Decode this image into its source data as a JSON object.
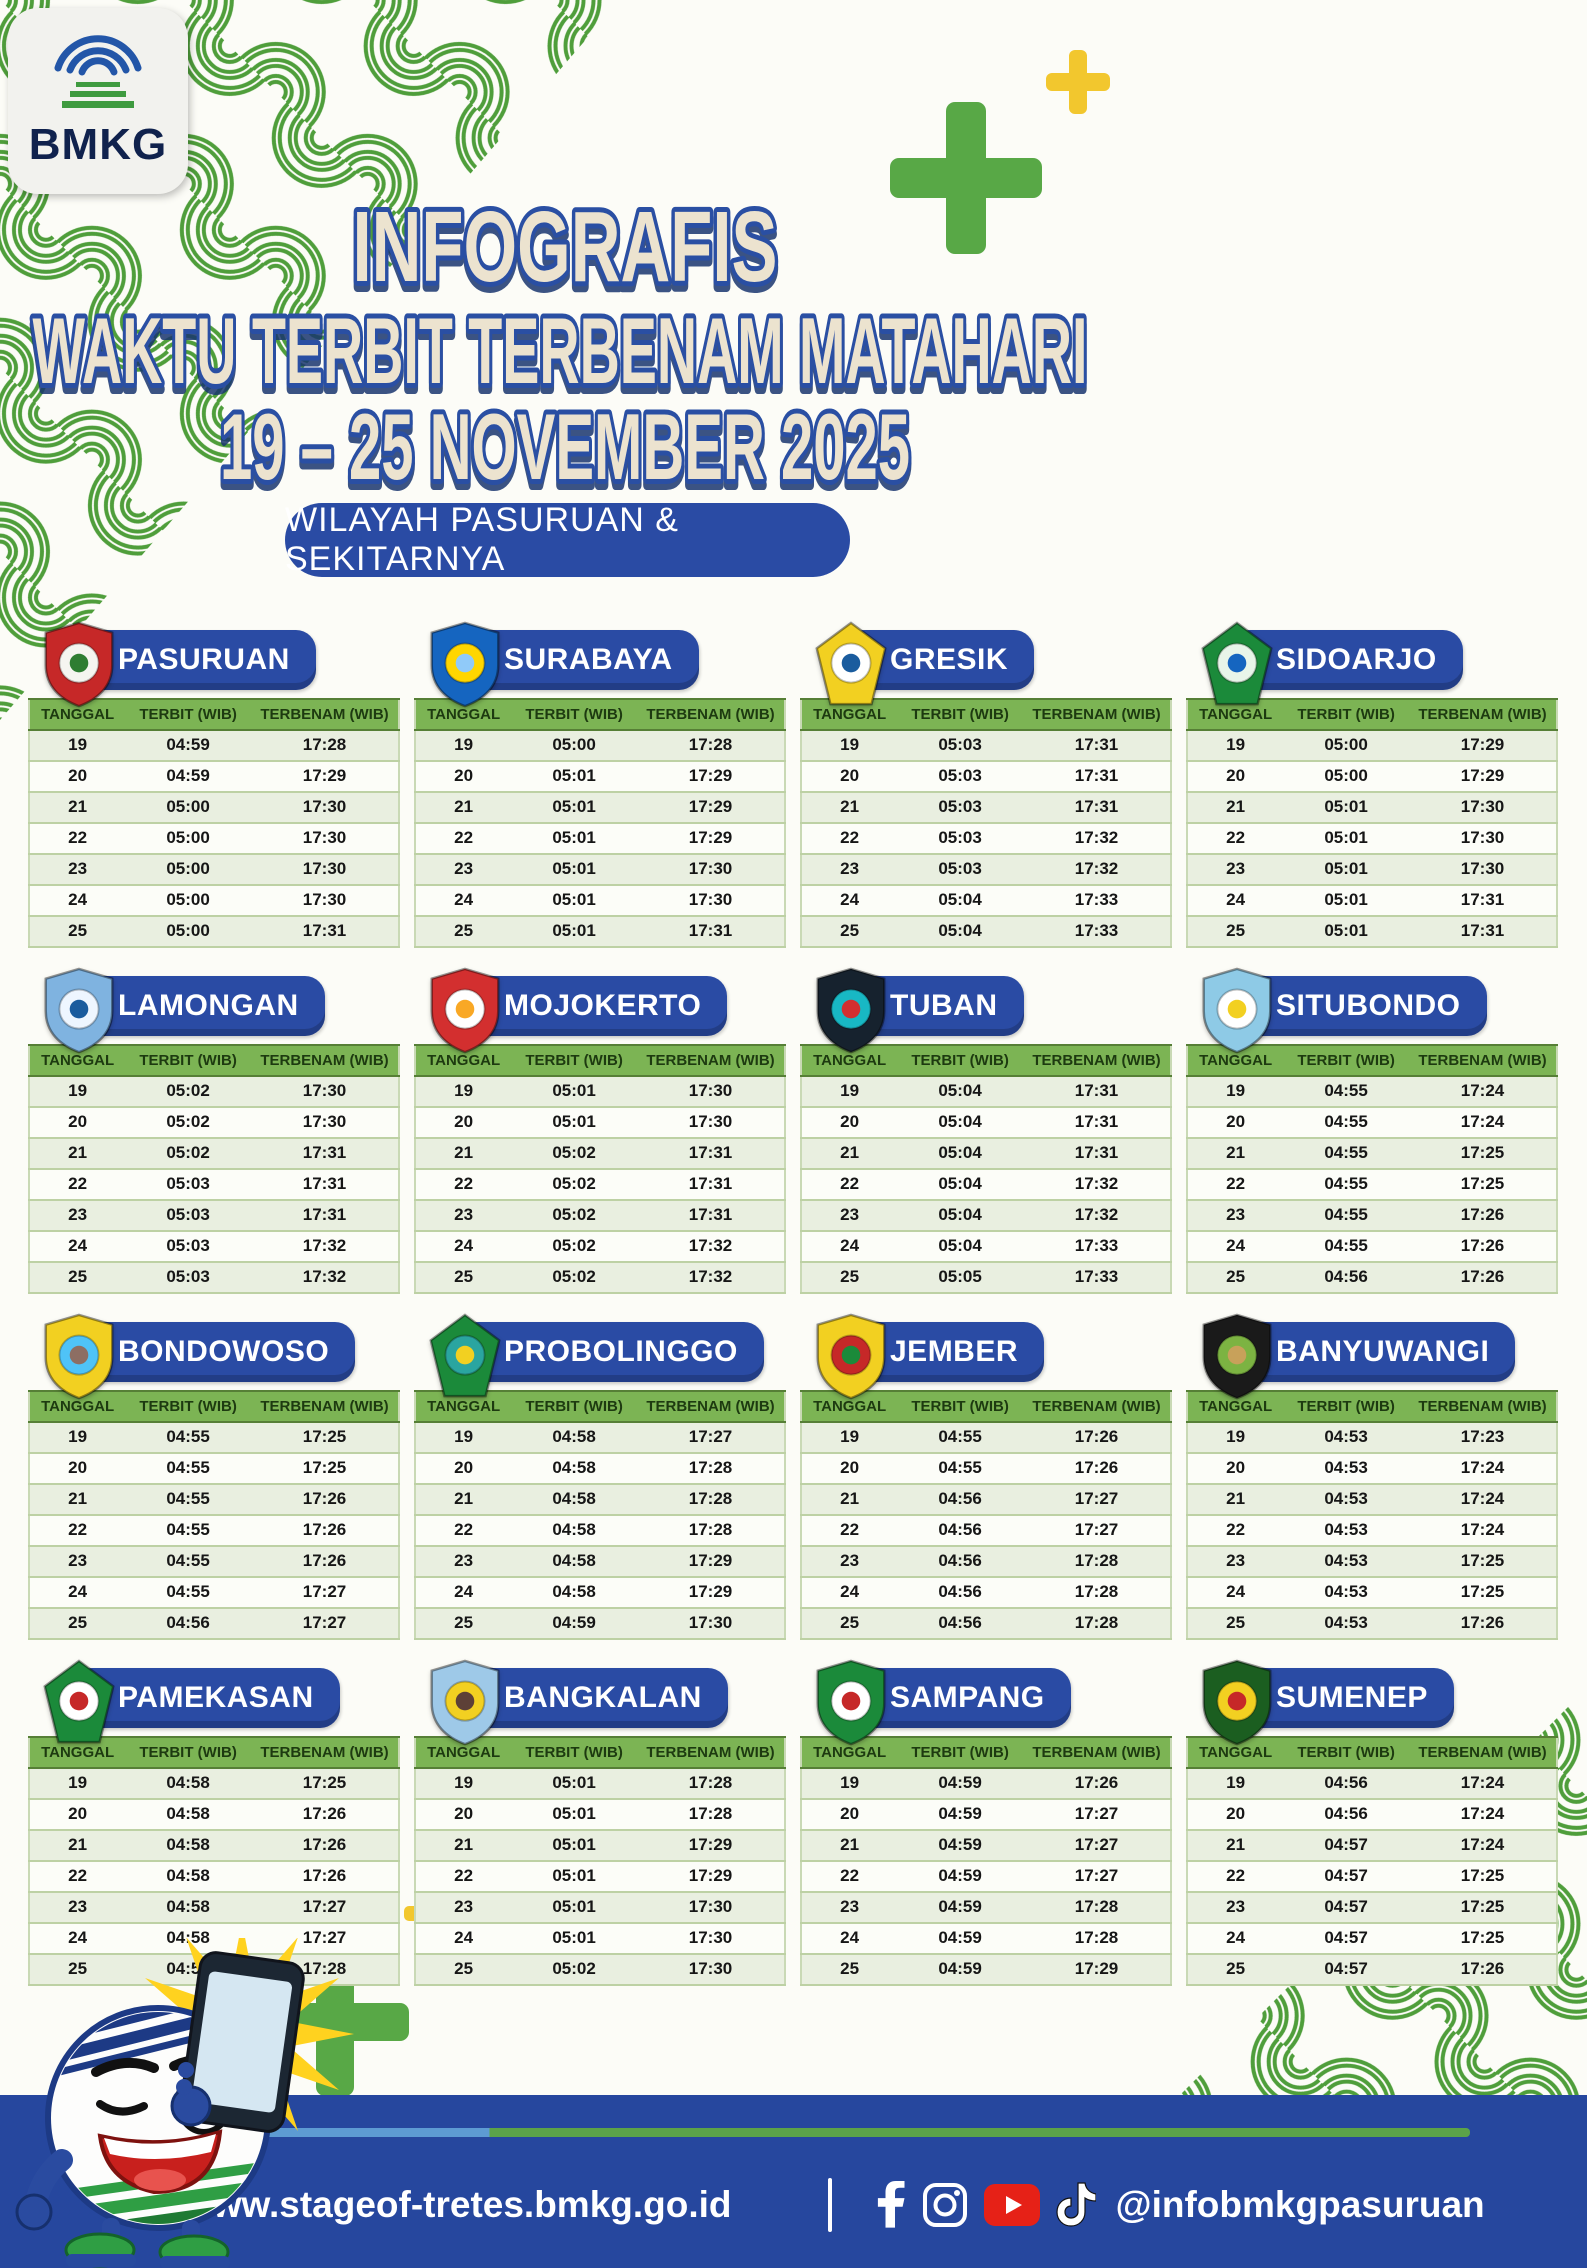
{
  "palette": {
    "accent_blue": "#2a4ba4",
    "footer_blue": "#26479e",
    "table_header_green": "#7cb454",
    "pattern_green": "#4f9e3b",
    "plus_green": "#58a846",
    "plus_yellow": "#f2c72e",
    "title_cream": "#ece3cf",
    "youtube_red": "#e62117"
  },
  "logo": {
    "text": "BMKG"
  },
  "header": {
    "title1": "INFOGRAFIS",
    "title2": "WAKTU TERBIT TERBENAM MATAHARI",
    "title3": "19 – 25 NOVEMBER 2025",
    "region": "WILAYAH PASURUAN & SEKITARNYA"
  },
  "table": {
    "headers": [
      "TANGGAL",
      "TERBIT (WIB)",
      "TERBENAM (WIB)"
    ]
  },
  "cities": [
    {
      "name": "PASURUAN",
      "emblem": {
        "shape": "shield",
        "colors": [
          "#c62828",
          "#f5f5f0",
          "#2e7d32"
        ]
      },
      "rows": [
        [
          "19",
          "04:59",
          "17:28"
        ],
        [
          "20",
          "04:59",
          "17:29"
        ],
        [
          "21",
          "05:00",
          "17:30"
        ],
        [
          "22",
          "05:00",
          "17:30"
        ],
        [
          "23",
          "05:00",
          "17:30"
        ],
        [
          "24",
          "05:00",
          "17:30"
        ],
        [
          "25",
          "05:00",
          "17:31"
        ]
      ]
    },
    {
      "name": "SURABAYA",
      "emblem": {
        "shape": "shield",
        "colors": [
          "#1565c0",
          "#ffd600",
          "#90caf9"
        ]
      },
      "rows": [
        [
          "19",
          "05:00",
          "17:28"
        ],
        [
          "20",
          "05:01",
          "17:29"
        ],
        [
          "21",
          "05:01",
          "17:29"
        ],
        [
          "22",
          "05:01",
          "17:29"
        ],
        [
          "23",
          "05:01",
          "17:30"
        ],
        [
          "24",
          "05:01",
          "17:30"
        ],
        [
          "25",
          "05:01",
          "17:31"
        ]
      ]
    },
    {
      "name": "GRESIK",
      "emblem": {
        "shape": "pentagon",
        "colors": [
          "#f2d021",
          "#ffffff",
          "#1a5c9e"
        ]
      },
      "rows": [
        [
          "19",
          "05:03",
          "17:31"
        ],
        [
          "20",
          "05:03",
          "17:31"
        ],
        [
          "21",
          "05:03",
          "17:31"
        ],
        [
          "22",
          "05:03",
          "17:32"
        ],
        [
          "23",
          "05:03",
          "17:32"
        ],
        [
          "24",
          "05:04",
          "17:33"
        ],
        [
          "25",
          "05:04",
          "17:33"
        ]
      ]
    },
    {
      "name": "SIDOARJO",
      "emblem": {
        "shape": "pentagon",
        "colors": [
          "#1b8a3a",
          "#e8f5e9",
          "#1565c0"
        ]
      },
      "rows": [
        [
          "19",
          "05:00",
          "17:29"
        ],
        [
          "20",
          "05:00",
          "17:29"
        ],
        [
          "21",
          "05:01",
          "17:30"
        ],
        [
          "22",
          "05:01",
          "17:30"
        ],
        [
          "23",
          "05:01",
          "17:30"
        ],
        [
          "24",
          "05:01",
          "17:31"
        ],
        [
          "25",
          "05:01",
          "17:31"
        ]
      ]
    },
    {
      "name": "LAMONGAN",
      "emblem": {
        "shape": "shield",
        "colors": [
          "#7fb3e0",
          "#eef6ff",
          "#1a5c9e"
        ]
      },
      "rows": [
        [
          "19",
          "05:02",
          "17:30"
        ],
        [
          "20",
          "05:02",
          "17:30"
        ],
        [
          "21",
          "05:02",
          "17:31"
        ],
        [
          "22",
          "05:03",
          "17:31"
        ],
        [
          "23",
          "05:03",
          "17:31"
        ],
        [
          "24",
          "05:03",
          "17:32"
        ],
        [
          "25",
          "05:03",
          "17:32"
        ]
      ]
    },
    {
      "name": "MOJOKERTO",
      "emblem": {
        "shape": "shield",
        "colors": [
          "#d32f2f",
          "#ffffff",
          "#f9a825"
        ]
      },
      "rows": [
        [
          "19",
          "05:01",
          "17:30"
        ],
        [
          "20",
          "05:01",
          "17:30"
        ],
        [
          "21",
          "05:02",
          "17:31"
        ],
        [
          "22",
          "05:02",
          "17:31"
        ],
        [
          "23",
          "05:02",
          "17:31"
        ],
        [
          "24",
          "05:02",
          "17:32"
        ],
        [
          "25",
          "05:02",
          "17:32"
        ]
      ]
    },
    {
      "name": "TUBAN",
      "emblem": {
        "shape": "shield",
        "colors": [
          "#16222e",
          "#18b8c4",
          "#d32f2f"
        ]
      },
      "rows": [
        [
          "19",
          "05:04",
          "17:31"
        ],
        [
          "20",
          "05:04",
          "17:31"
        ],
        [
          "21",
          "05:04",
          "17:31"
        ],
        [
          "22",
          "05:04",
          "17:32"
        ],
        [
          "23",
          "05:04",
          "17:32"
        ],
        [
          "24",
          "05:04",
          "17:33"
        ],
        [
          "25",
          "05:05",
          "17:33"
        ]
      ]
    },
    {
      "name": "SITUBONDO",
      "emblem": {
        "shape": "shield",
        "colors": [
          "#8ecae6",
          "#ffffff",
          "#f2d021"
        ]
      },
      "rows": [
        [
          "19",
          "04:55",
          "17:24"
        ],
        [
          "20",
          "04:55",
          "17:24"
        ],
        [
          "21",
          "04:55",
          "17:25"
        ],
        [
          "22",
          "04:55",
          "17:25"
        ],
        [
          "23",
          "04:55",
          "17:26"
        ],
        [
          "24",
          "04:55",
          "17:26"
        ],
        [
          "25",
          "04:56",
          "17:26"
        ]
      ]
    },
    {
      "name": "BONDOWOSO",
      "emblem": {
        "shape": "shield",
        "colors": [
          "#f2d021",
          "#4fc3f7",
          "#8d6e63"
        ]
      },
      "rows": [
        [
          "19",
          "04:55",
          "17:25"
        ],
        [
          "20",
          "04:55",
          "17:25"
        ],
        [
          "21",
          "04:55",
          "17:26"
        ],
        [
          "22",
          "04:55",
          "17:26"
        ],
        [
          "23",
          "04:55",
          "17:26"
        ],
        [
          "24",
          "04:55",
          "17:27"
        ],
        [
          "25",
          "04:56",
          "17:27"
        ]
      ]
    },
    {
      "name": "PROBOLINGGO",
      "emblem": {
        "shape": "pentagon",
        "colors": [
          "#1b8a3a",
          "#2aa5a0",
          "#f2d021"
        ]
      },
      "rows": [
        [
          "19",
          "04:58",
          "17:27"
        ],
        [
          "20",
          "04:58",
          "17:28"
        ],
        [
          "21",
          "04:58",
          "17:28"
        ],
        [
          "22",
          "04:58",
          "17:28"
        ],
        [
          "23",
          "04:58",
          "17:29"
        ],
        [
          "24",
          "04:58",
          "17:29"
        ],
        [
          "25",
          "04:59",
          "17:30"
        ]
      ]
    },
    {
      "name": "JEMBER",
      "emblem": {
        "shape": "shield",
        "colors": [
          "#f2d021",
          "#c62828",
          "#1b8a3a"
        ]
      },
      "rows": [
        [
          "19",
          "04:55",
          "17:26"
        ],
        [
          "20",
          "04:55",
          "17:26"
        ],
        [
          "21",
          "04:56",
          "17:27"
        ],
        [
          "22",
          "04:56",
          "17:27"
        ],
        [
          "23",
          "04:56",
          "17:28"
        ],
        [
          "24",
          "04:56",
          "17:28"
        ],
        [
          "25",
          "04:56",
          "17:28"
        ]
      ]
    },
    {
      "name": "BANYUWANGI",
      "emblem": {
        "shape": "shield",
        "colors": [
          "#1a1a1a",
          "#7cb342",
          "#c8a15a"
        ]
      },
      "rows": [
        [
          "19",
          "04:53",
          "17:23"
        ],
        [
          "20",
          "04:53",
          "17:24"
        ],
        [
          "21",
          "04:53",
          "17:24"
        ],
        [
          "22",
          "04:53",
          "17:24"
        ],
        [
          "23",
          "04:53",
          "17:25"
        ],
        [
          "24",
          "04:53",
          "17:25"
        ],
        [
          "25",
          "04:53",
          "17:26"
        ]
      ]
    },
    {
      "name": "PAMEKASAN",
      "emblem": {
        "shape": "pentagon",
        "colors": [
          "#1b8a3a",
          "#ffffff",
          "#c62828"
        ]
      },
      "rows": [
        [
          "19",
          "04:58",
          "17:25"
        ],
        [
          "20",
          "04:58",
          "17:26"
        ],
        [
          "21",
          "04:58",
          "17:26"
        ],
        [
          "22",
          "04:58",
          "17:26"
        ],
        [
          "23",
          "04:58",
          "17:27"
        ],
        [
          "24",
          "04:58",
          "17:27"
        ],
        [
          "25",
          "04:59",
          "17:28"
        ]
      ]
    },
    {
      "name": "BANGKALAN",
      "emblem": {
        "shape": "shield",
        "colors": [
          "#9ec9e8",
          "#f2d021",
          "#5d4037"
        ]
      },
      "rows": [
        [
          "19",
          "05:01",
          "17:28"
        ],
        [
          "20",
          "05:01",
          "17:28"
        ],
        [
          "21",
          "05:01",
          "17:29"
        ],
        [
          "22",
          "05:01",
          "17:29"
        ],
        [
          "23",
          "05:01",
          "17:30"
        ],
        [
          "24",
          "05:01",
          "17:30"
        ],
        [
          "25",
          "05:02",
          "17:30"
        ]
      ]
    },
    {
      "name": "SAMPANG",
      "emblem": {
        "shape": "shield",
        "colors": [
          "#1b8a3a",
          "#ffffff",
          "#c62828"
        ]
      },
      "rows": [
        [
          "19",
          "04:59",
          "17:26"
        ],
        [
          "20",
          "04:59",
          "17:27"
        ],
        [
          "21",
          "04:59",
          "17:27"
        ],
        [
          "22",
          "04:59",
          "17:27"
        ],
        [
          "23",
          "04:59",
          "17:28"
        ],
        [
          "24",
          "04:59",
          "17:28"
        ],
        [
          "25",
          "04:59",
          "17:29"
        ]
      ]
    },
    {
      "name": "SUMENEP",
      "emblem": {
        "shape": "shield",
        "colors": [
          "#1b5e20",
          "#f2d021",
          "#c62828"
        ]
      },
      "rows": [
        [
          "19",
          "04:56",
          "17:24"
        ],
        [
          "20",
          "04:56",
          "17:24"
        ],
        [
          "21",
          "04:57",
          "17:24"
        ],
        [
          "22",
          "04:57",
          "17:25"
        ],
        [
          "23",
          "04:57",
          "17:25"
        ],
        [
          "24",
          "04:57",
          "17:25"
        ],
        [
          "25",
          "04:57",
          "17:26"
        ]
      ]
    }
  ],
  "footer": {
    "website": "www.stageof-tretes.bmkg.go.id",
    "handle": "@infobmkgpasuruan",
    "icons": [
      "globe-icon",
      "facebook-icon",
      "instagram-icon",
      "youtube-icon",
      "tiktok-icon"
    ]
  }
}
